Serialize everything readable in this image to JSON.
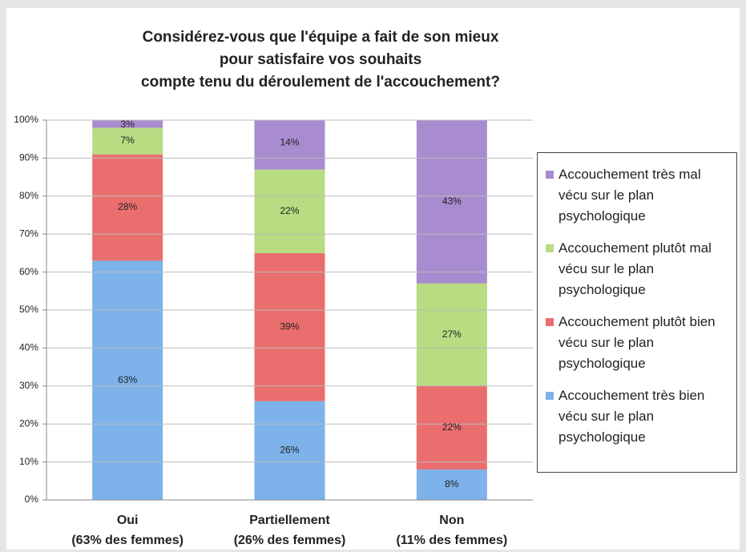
{
  "chart_data": {
    "type": "stacked_bar",
    "title": [
      "Considérez-vous que l'équipe a fait de son mieux",
      "pour satisfaire vos souhaits",
      "compte tenu du déroulement de l'accouchement?"
    ],
    "categories": [
      "Oui",
      "Partiellement",
      "Non"
    ],
    "category_notes": [
      "(63% des femmes)",
      "(26% des femmes)",
      "(11% des femmes)"
    ],
    "series": [
      {
        "name": "Accouchement très bien vécu sur le plan psychologique",
        "color": "#7db2ea",
        "values": [
          63,
          26,
          8
        ],
        "value_labels": [
          "63%",
          "26%",
          "8%"
        ]
      },
      {
        "name": "Accouchement plutôt bien vécu sur le plan psychologique",
        "color": "#ea6e6e",
        "values": [
          28,
          39,
          22
        ],
        "value_labels": [
          "28%",
          "39%",
          "22%"
        ]
      },
      {
        "name": "Accouchement plutôt mal vécu sur le plan psychologique",
        "color": "#b7dc82",
        "values": [
          7,
          22,
          27
        ],
        "value_labels": [
          "7%",
          "22%",
          "27%"
        ]
      },
      {
        "name": "Accouchement très mal vécu sur le plan psychologique",
        "color": "#a88ccf",
        "values": [
          3,
          14,
          43
        ],
        "value_labels": [
          "3%",
          "14%",
          "43%"
        ]
      }
    ],
    "ylim": [
      0,
      100
    ],
    "yticks": [
      {
        "value": 0,
        "label": "0%"
      },
      {
        "value": 10,
        "label": "10%"
      },
      {
        "value": 20,
        "label": "20%"
      },
      {
        "value": 30,
        "label": "30%"
      },
      {
        "value": 40,
        "label": "40%"
      },
      {
        "value": 50,
        "label": "50%"
      },
      {
        "value": 60,
        "label": "60%"
      },
      {
        "value": 70,
        "label": "70%"
      },
      {
        "value": 80,
        "label": "80%"
      },
      {
        "value": 90,
        "label": "90%"
      },
      {
        "value": 100,
        "label": "100%"
      }
    ],
    "grid": true,
    "legend": "right"
  }
}
